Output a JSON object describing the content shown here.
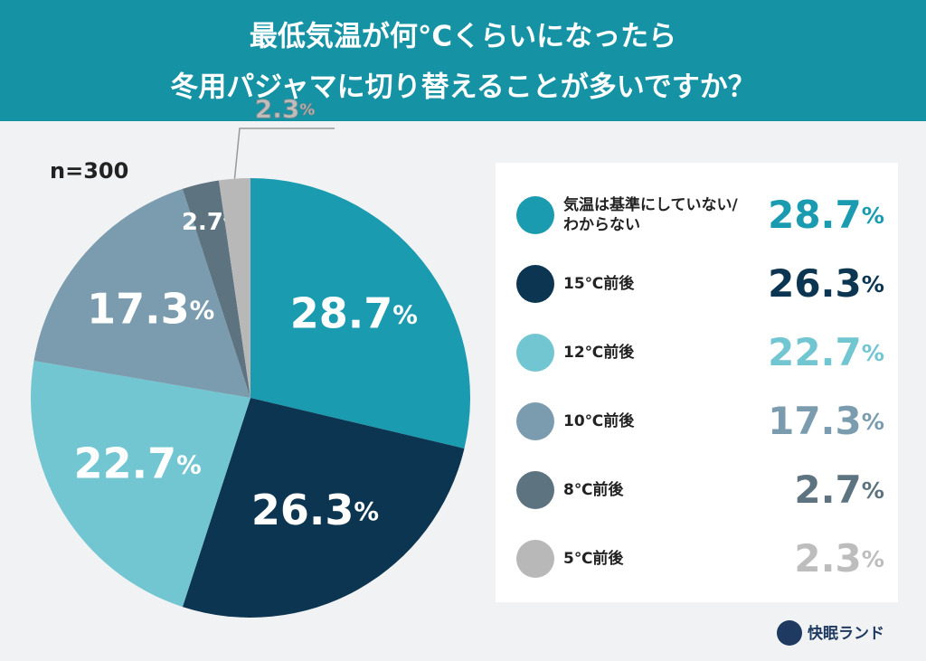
{
  "chart_data": {
    "type": "pie",
    "title_lines": [
      "最低気温が何°Cくらいになったら",
      "冬用パジャマに切り替えることが多いですか？"
    ],
    "sample_label": "n=300",
    "categories": [
      "気温は基準にしていない/わからない",
      "15℃前後",
      "12℃前後",
      "10℃前後",
      "8℃前後",
      "5℃前後"
    ],
    "values": [
      28.7,
      26.3,
      22.7,
      17.3,
      2.7,
      2.3
    ],
    "value_labels": [
      "28.7%",
      "26.3%",
      "22.7%",
      "17.3%",
      "2.7%",
      "2.3%"
    ],
    "colors": [
      "#1a9bb0",
      "#0b3550",
      "#72c6d2",
      "#7a9cae",
      "#5d7380",
      "#b8b8b8"
    ],
    "brand": "快眠ランド"
  }
}
